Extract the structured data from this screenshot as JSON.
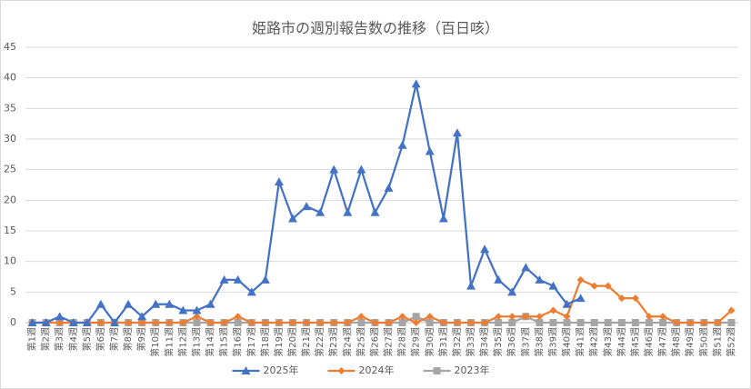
{
  "chart_data": {
    "type": "line",
    "title": "姫路市の週別報告数の推移（百日咳）",
    "categories": [
      "第1週",
      "第2週",
      "第3週",
      "第4週",
      "第5週",
      "第6週",
      "第7週",
      "第8週",
      "第9週",
      "第10週",
      "第11週",
      "第12週",
      "第13週",
      "第14週",
      "第15週",
      "第16週",
      "第17週",
      "第18週",
      "第19週",
      "第20週",
      "第21週",
      "第22週",
      "第23週",
      "第24週",
      "第25週",
      "第26週",
      "第27週",
      "第28週",
      "第29週",
      "第30週",
      "第31週",
      "第32週",
      "第33週",
      "第34週",
      "第35週",
      "第36週",
      "第37週",
      "第38週",
      "第39週",
      "第40週",
      "第41週",
      "第42週",
      "第43週",
      "第44週",
      "第45週",
      "第46週",
      "第47週",
      "第48週",
      "第49週",
      "第50週",
      "第51週",
      "第52週"
    ],
    "series": [
      {
        "name": "2025年",
        "color": "#4472c4",
        "marker": "triangle",
        "values": [
          0,
          0,
          1,
          0,
          0,
          3,
          0,
          3,
          1,
          3,
          3,
          2,
          2,
          3,
          7,
          7,
          5,
          7,
          23,
          17,
          19,
          18,
          25,
          18,
          25,
          18,
          22,
          29,
          39,
          28,
          17,
          31,
          6,
          12,
          7,
          5,
          9,
          7,
          6,
          3,
          4,
          null,
          null,
          null,
          null,
          null,
          null,
          null,
          null,
          null,
          null,
          null
        ]
      },
      {
        "name": "2024年",
        "color": "#ed7d31",
        "marker": "diamond",
        "values": [
          0,
          0,
          0,
          0,
          0,
          0,
          0,
          0,
          0,
          0,
          0,
          0,
          1,
          0,
          0,
          1,
          0,
          0,
          0,
          0,
          0,
          0,
          0,
          0,
          1,
          0,
          0,
          1,
          0,
          1,
          0,
          0,
          0,
          0,
          1,
          1,
          1,
          1,
          2,
          1,
          7,
          6,
          6,
          4,
          4,
          1,
          1,
          0,
          0,
          0,
          0,
          2
        ]
      },
      {
        "name": "2023年",
        "color": "#a5a5a5",
        "marker": "square",
        "values": [
          0,
          0,
          0,
          0,
          0,
          0,
          0,
          0,
          0,
          0,
          0,
          0,
          0,
          0,
          0,
          0,
          0,
          0,
          0,
          0,
          0,
          0,
          0,
          0,
          0,
          0,
          0,
          0,
          1,
          0,
          0,
          0,
          0,
          0,
          0,
          0,
          1,
          0,
          0,
          0,
          0,
          0,
          0,
          0,
          0,
          0,
          0,
          0,
          0,
          0,
          0,
          0
        ]
      }
    ],
    "ylim": [
      0,
      45
    ],
    "yticks": [
      0,
      5,
      10,
      15,
      20,
      25,
      30,
      35,
      40,
      45
    ],
    "grid": true,
    "legend": "bottom"
  }
}
